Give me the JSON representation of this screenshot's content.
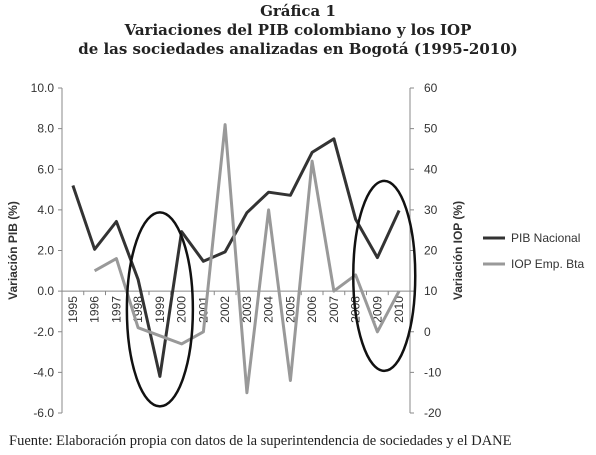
{
  "figure": {
    "label": "Gráfica 1",
    "title_line1": "Variaciones del PIB colombiano y los IOP",
    "title_line2": "de las sociedades analizadas en Bogotá (1995-2010)",
    "source": "Fuente: Elaboración propia con datos de la superintendencia de sociedades y el DANE"
  },
  "chart_data": {
    "type": "line",
    "x": [
      "1995",
      "1996",
      "1997",
      "1998",
      "1999",
      "2000",
      "2001",
      "2002",
      "2003",
      "2004",
      "2005",
      "2006",
      "2007",
      "2008",
      "2009",
      "2010"
    ],
    "series": [
      {
        "name": "PIB Nacional",
        "axis": "left",
        "color": "#333333",
        "values": [
          5.2,
          2.06,
          3.43,
          0.57,
          -4.2,
          2.93,
          1.47,
          1.93,
          3.86,
          4.87,
          4.72,
          6.83,
          7.5,
          3.54,
          1.65,
          3.97
        ]
      },
      {
        "name": "IOP Emp. Bta",
        "axis": "right",
        "color": "#999999",
        "values": [
          null,
          15,
          18,
          1,
          -1,
          -3,
          0,
          51,
          -15,
          30,
          -12,
          42,
          10,
          14,
          0,
          10
        ]
      }
    ],
    "y_left": {
      "label": "Variación PIB (%)",
      "ylim": [
        -6,
        10
      ],
      "ticks": [
        "10.0",
        "8.0",
        "6.0",
        "4.0",
        "2.0",
        "0.0",
        "-2.0",
        "-4.0",
        "-6.0"
      ]
    },
    "y_right": {
      "label": "Variación IOP (%)",
      "ylim": [
        -20,
        60
      ],
      "ticks": [
        "60",
        "50",
        "40",
        "30",
        "20",
        "10",
        "0",
        "-10",
        "-20"
      ]
    },
    "legend_placement": "right",
    "annotations": [
      {
        "shape": "ellipse",
        "around_years": [
          "1998",
          "2000"
        ]
      },
      {
        "shape": "ellipse",
        "around_years": [
          "2009",
          "2010"
        ]
      }
    ],
    "grid": false
  }
}
